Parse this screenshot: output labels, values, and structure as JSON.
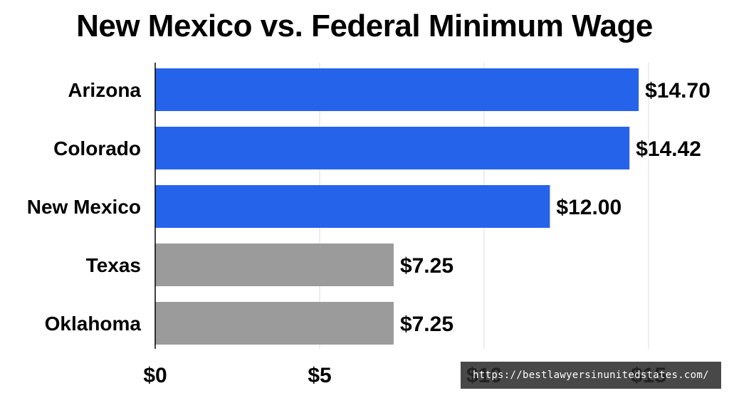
{
  "chart_data": {
    "type": "bar",
    "orientation": "horizontal",
    "title": "New Mexico vs. Federal Minimum Wage",
    "categories": [
      "Arizona",
      "Colorado",
      "New Mexico",
      "Texas",
      "Oklahoma"
    ],
    "values": [
      14.7,
      14.42,
      12.0,
      7.25,
      7.25
    ],
    "value_labels": [
      "$14.70",
      "$14.42",
      "$12.00",
      "$7.25",
      "$7.25"
    ],
    "bar_colors": [
      "#2563eb",
      "#2563eb",
      "#2563eb",
      "#9b9b9b",
      "#9b9b9b"
    ],
    "x_ticks": [
      0,
      5,
      10,
      15
    ],
    "x_tick_labels": [
      "$0",
      "$5",
      "$10",
      "$15"
    ],
    "xlim": [
      0,
      15
    ],
    "grid": "vertical",
    "xlabel": "",
    "ylabel": ""
  },
  "watermark": "https://bestlawyersinunitedstates.com/"
}
